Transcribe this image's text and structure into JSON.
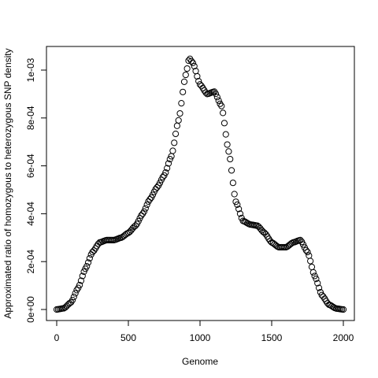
{
  "chart_data": {
    "type": "scatter",
    "title": "",
    "xlabel": "Genome",
    "ylabel": "Approximated ratio of homozygous to heterozygous SNP density",
    "xlim": [
      0,
      2000
    ],
    "ylim": [
      0,
      0.00105
    ],
    "grid": false,
    "legend": "none",
    "marker": "open-circle",
    "x_ticks": [
      {
        "value": 0,
        "label": "0"
      },
      {
        "value": 500,
        "label": "500"
      },
      {
        "value": 1000,
        "label": "1000"
      },
      {
        "value": 1500,
        "label": "1500"
      },
      {
        "value": 2000,
        "label": "2000"
      }
    ],
    "y_ticks": [
      {
        "value": 0,
        "label": "0e+00"
      },
      {
        "value": 0.0002,
        "label": "2e-04"
      },
      {
        "value": 0.0004,
        "label": "4e-04"
      },
      {
        "value": 0.0006,
        "label": "6e-04"
      },
      {
        "value": 0.0008,
        "label": "8e-04"
      },
      {
        "value": 0.001,
        "label": "1e-03"
      }
    ],
    "curve_keypoints": [
      [
        0,
        0.0
      ],
      [
        50,
        5e-06
      ],
      [
        100,
        3e-05
      ],
      [
        150,
        9e-05
      ],
      [
        200,
        0.00017
      ],
      [
        250,
        0.00024
      ],
      [
        300,
        0.00028
      ],
      [
        350,
        0.00029
      ],
      [
        400,
        0.00029
      ],
      [
        450,
        0.0003
      ],
      [
        500,
        0.00032
      ],
      [
        550,
        0.00035
      ],
      [
        600,
        0.0004
      ],
      [
        650,
        0.00046
      ],
      [
        700,
        0.00051
      ],
      [
        750,
        0.00056
      ],
      [
        800,
        0.00064
      ],
      [
        850,
        0.00079
      ],
      [
        900,
        0.00098
      ],
      [
        925,
        0.00105
      ],
      [
        950,
        0.00103
      ],
      [
        1000,
        0.00094
      ],
      [
        1050,
        0.0009
      ],
      [
        1100,
        0.00091
      ],
      [
        1150,
        0.00085
      ],
      [
        1200,
        0.00066
      ],
      [
        1250,
        0.00045
      ],
      [
        1300,
        0.00037
      ],
      [
        1350,
        0.000355
      ],
      [
        1400,
        0.00035
      ],
      [
        1450,
        0.00032
      ],
      [
        1500,
        0.00028
      ],
      [
        1550,
        0.00026
      ],
      [
        1600,
        0.00026
      ],
      [
        1650,
        0.00028
      ],
      [
        1700,
        0.00029
      ],
      [
        1750,
        0.00024
      ],
      [
        1800,
        0.00014
      ],
      [
        1850,
        6e-05
      ],
      [
        1900,
        2e-05
      ],
      [
        1950,
        4e-06
      ],
      [
        2000,
        0.0
      ]
    ],
    "sample_step": 10,
    "colors": {
      "marker": "#000000",
      "axis": "#000000",
      "background": "#ffffff"
    }
  }
}
